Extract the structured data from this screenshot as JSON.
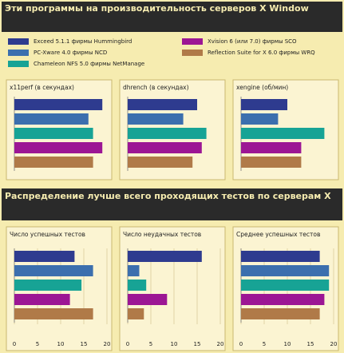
{
  "title": "Эти программы на производительность серверов X Window",
  "title2": "Распределение лучше всего проходящих тестов по серверам X",
  "legend": [
    {
      "name": "Exceed 5.1.1 фирмы Hummingbird",
      "color": "#2e3b8f"
    },
    {
      "name": "PC-Xware 4.0 фирмы NCD",
      "color": "#3c6fae"
    },
    {
      "name": "Chameleon NFS 5.0 фирмы NetManage",
      "color": "#17a395"
    },
    {
      "name": "Xvision 6 (или 7.0) фирмы SCO",
      "color": "#9c1694"
    },
    {
      "name": "Reflection Suite for X 6.0 фирмы WRQ",
      "color": "#b07a48"
    }
  ],
  "chart_data": [
    {
      "type": "bar",
      "title": "x11perf (в секундах)",
      "values": [
        9.5,
        8,
        8.5,
        9.5,
        8.5
      ],
      "xlim": [
        0,
        10
      ]
    },
    {
      "type": "bar",
      "title": "dhrench (в секундах)",
      "values": [
        7.5,
        6,
        8.5,
        8,
        7
      ],
      "xlim": [
        0,
        10
      ]
    },
    {
      "type": "bar",
      "title": "xengine (об/мин)",
      "values": [
        5,
        4,
        9,
        6.5,
        6.5
      ],
      "xlim": [
        0,
        10
      ]
    },
    {
      "type": "bar",
      "title": "Число успешных тестов",
      "values": [
        13,
        17,
        14.5,
        12,
        17
      ],
      "xlim": [
        0,
        20
      ],
      "xticks": [
        0,
        5,
        10,
        15,
        20
      ]
    },
    {
      "type": "bar",
      "title": "Число неудачных тестов",
      "values": [
        16,
        2.5,
        4,
        8.5,
        3.5
      ],
      "xlim": [
        0,
        20
      ],
      "xticks": [
        0,
        5,
        10,
        15,
        20
      ]
    },
    {
      "type": "bar",
      "title": "Среднее успешных тестов",
      "values": [
        17,
        19,
        19,
        18,
        17
      ],
      "xlim": [
        0,
        20
      ],
      "xticks": [
        0,
        5,
        10,
        15,
        20
      ]
    }
  ]
}
